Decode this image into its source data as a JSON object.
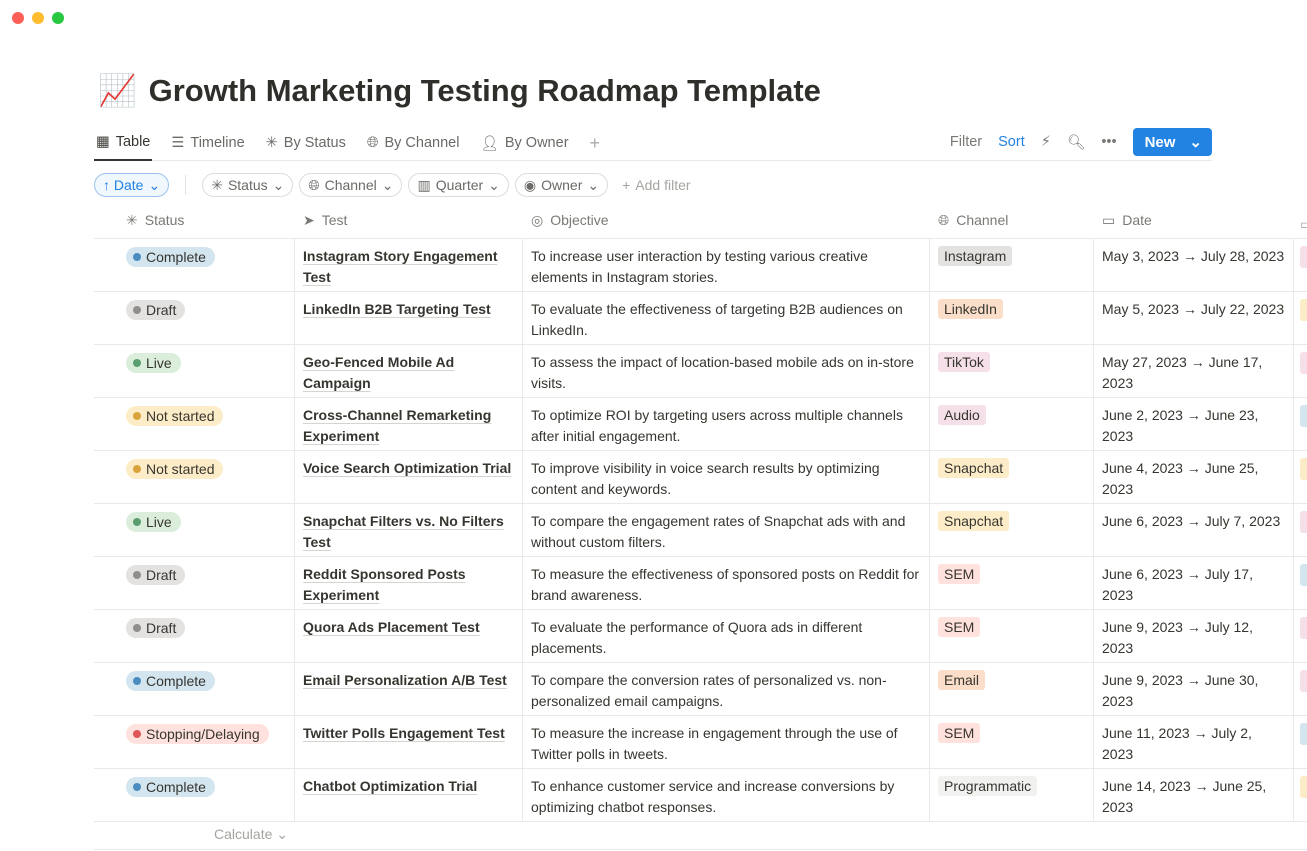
{
  "page": {
    "emoji": "📈",
    "title": "Growth Marketing Testing Roadmap Template"
  },
  "views": [
    {
      "label": "Table",
      "icon": "grid-icon"
    },
    {
      "label": "Timeline",
      "icon": "timeline-icon"
    },
    {
      "label": "By Status",
      "icon": "status-icon"
    },
    {
      "label": "By Channel",
      "icon": "globe-icon"
    },
    {
      "label": "By Owner",
      "icon": "person-icon"
    }
  ],
  "toolbar": {
    "filter": "Filter",
    "sort": "Sort",
    "new": "New"
  },
  "filters": {
    "sort": "↑ Date",
    "items": [
      "Status",
      "Channel",
      "Quarter",
      "Owner"
    ],
    "add": "Add filter"
  },
  "columns": [
    "Status",
    "Test",
    "Objective",
    "Channel",
    "Date"
  ],
  "status_colors": {
    "Complete": {
      "bg": "#d3e5ef",
      "dot": "#4a8cc0"
    },
    "Draft": {
      "bg": "#e3e2e0",
      "dot": "#8f8e8a"
    },
    "Live": {
      "bg": "#dbeddb",
      "dot": "#5a9e6f"
    },
    "Not started": {
      "bg": "#fdecc8",
      "dot": "#d9a23c"
    },
    "Stopping/Delaying": {
      "bg": "#ffe2dd",
      "dot": "#e0575a"
    }
  },
  "channel_colors": {
    "Instagram": "#e3e2e0",
    "LinkedIn": "#fadec9",
    "TikTok": "#f5e0e9",
    "Audio": "#f5e0e9",
    "Snapchat": "#fdecc8",
    "SEM": "#ffe2dd",
    "Email": "#fadec9",
    "Programmatic": "#f1f1ef"
  },
  "rows": [
    {
      "status": "Complete",
      "test": "Instagram Story Engagement Test",
      "objective": "To increase user interaction by testing various creative elements in Instagram stories.",
      "channel": "Instagram",
      "date": "May 3, 2023 → July 28, 2023",
      "next_color": "#f5e0e9"
    },
    {
      "status": "Draft",
      "test": "LinkedIn B2B Targeting Test",
      "objective": "To evaluate the effectiveness of targeting B2B audiences on LinkedIn.",
      "channel": "LinkedIn",
      "date": "May 5, 2023 → July 22, 2023",
      "next_color": "#fdecc8"
    },
    {
      "status": "Live",
      "test": "Geo-Fenced Mobile Ad Campaign",
      "objective": "To assess the impact of location-based mobile ads on in-store visits.",
      "channel": "TikTok",
      "date": "May 27, 2023 → June 17, 2023",
      "next_color": "#f5e0e9"
    },
    {
      "status": "Not started",
      "test": "Cross-Channel Remarketing Experiment",
      "objective": "To optimize ROI by targeting users across multiple channels after initial engagement.",
      "channel": "Audio",
      "date": "June 2, 2023 → June 23, 2023",
      "next_color": "#d3e5ef"
    },
    {
      "status": "Not started",
      "test": "Voice Search Optimization Trial",
      "objective": "To improve visibility in voice search results by optimizing content and keywords.",
      "channel": "Snapchat",
      "date": "June 4, 2023 → June 25, 2023",
      "next_color": "#fdecc8"
    },
    {
      "status": "Live",
      "test": "Snapchat Filters vs. No Filters Test",
      "objective": "To compare the engagement rates of Snapchat ads with and without custom filters.",
      "channel": "Snapchat",
      "date": "June 6, 2023 → July 7, 2023",
      "next_color": "#f5e0e9"
    },
    {
      "status": "Draft",
      "test": "Reddit Sponsored Posts Experiment",
      "objective": "To measure the effectiveness of sponsored posts on Reddit for brand awareness.",
      "channel": "SEM",
      "date": "June 6, 2023 → July 17, 2023",
      "next_color": "#d3e5ef"
    },
    {
      "status": "Draft",
      "test": "Quora Ads Placement Test",
      "objective": "To evaluate the performance of Quora ads in different placements.",
      "channel": "SEM",
      "date": "June 9, 2023 → July 12, 2023",
      "next_color": "#f5e0e9"
    },
    {
      "status": "Complete",
      "test": "Email Personalization A/B Test",
      "objective": "To compare the conversion rates of personalized vs. non-personalized email campaigns.",
      "channel": "Email",
      "date": "June 9, 2023 → June 30, 2023",
      "next_color": "#f5e0e9"
    },
    {
      "status": "Stopping/Delaying",
      "test": "Twitter Polls Engagement Test",
      "objective": "To measure the increase in engagement through the use of Twitter polls in tweets.",
      "channel": "SEM",
      "date": "June 11, 2023 → July 2, 2023",
      "next_color": "#d3e5ef"
    },
    {
      "status": "Complete",
      "test": "Chatbot Optimization Trial",
      "objective": "To enhance customer service and increase conversions by optimizing chatbot responses.",
      "channel": "Programmatic",
      "date": "June 14, 2023 → June 25, 2023",
      "next_color": "#fdecc8"
    }
  ],
  "footer": {
    "calculate": "Calculate ⌄"
  }
}
